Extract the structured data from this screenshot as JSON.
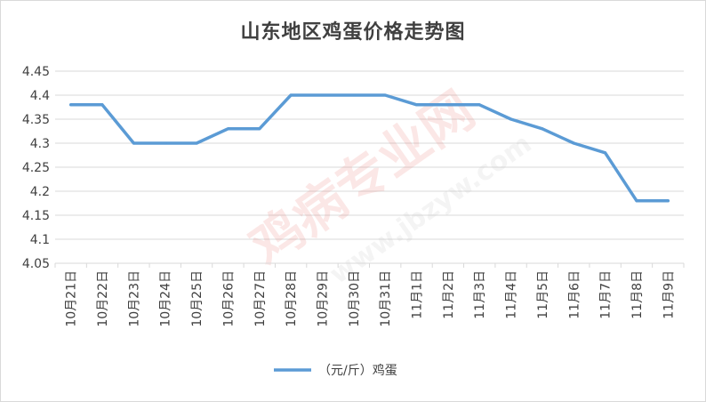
{
  "chart_data": {
    "type": "line",
    "title": "山东地区鸡蛋价格走势图",
    "xlabel": "",
    "ylabel": "",
    "ylim": [
      4.05,
      4.45
    ],
    "yticks": [
      "4.05",
      "4.1",
      "4.15",
      "4.2",
      "4.25",
      "4.3",
      "4.35",
      "4.4",
      "4.45"
    ],
    "grid": true,
    "legend_position": "bottom",
    "categories": [
      "10月21日",
      "10月22日",
      "10月23日",
      "10月24日",
      "10月25日",
      "10月26日",
      "10月27日",
      "10月28日",
      "10月29日",
      "10月30日",
      "10月31日",
      "11月1日",
      "11月2日",
      "11月3日",
      "11月4日",
      "11月5日",
      "11月6日",
      "11月7日",
      "11月8日",
      "11月9日"
    ],
    "series": [
      {
        "name": "（元/斤）鸡蛋",
        "color": "#5b9bd5",
        "values": [
          4.38,
          4.38,
          4.3,
          4.3,
          4.3,
          4.33,
          4.33,
          4.4,
          4.4,
          4.4,
          4.4,
          4.38,
          4.38,
          4.38,
          4.35,
          4.33,
          4.3,
          4.28,
          4.18,
          4.18
        ]
      }
    ]
  },
  "watermark": {
    "text_main": "鸡病专业网",
    "text_url": "www.jbzyw.com",
    "color": "#e8706a"
  }
}
